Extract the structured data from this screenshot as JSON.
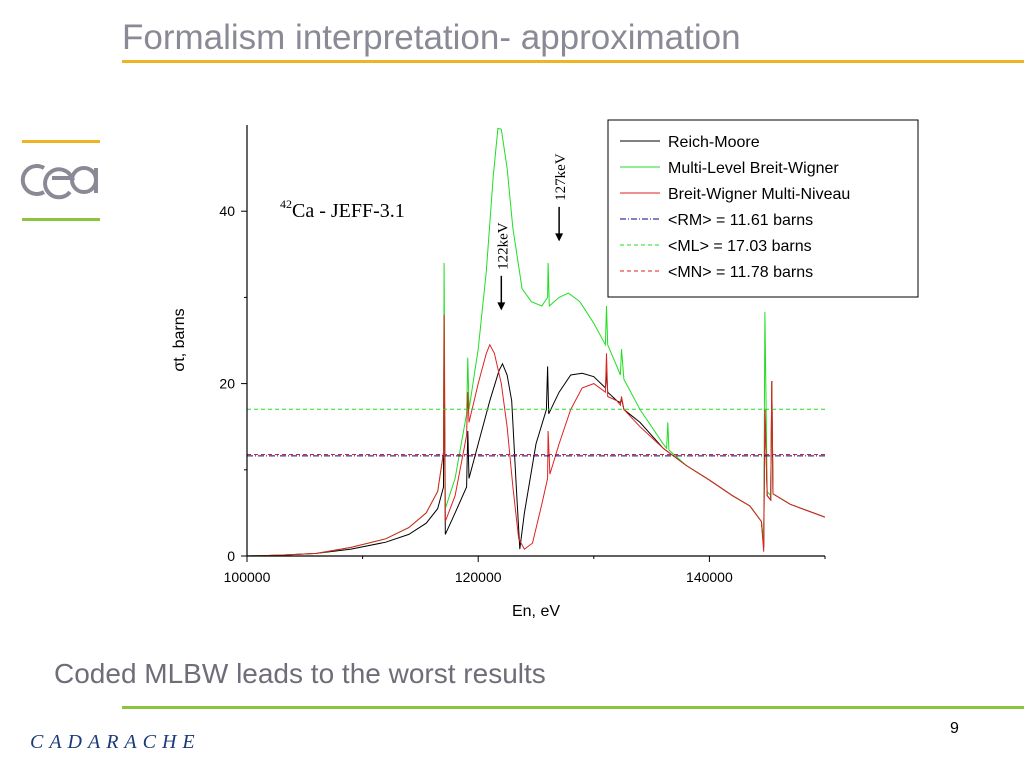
{
  "slide": {
    "title": "Formalism interpretation- approximation",
    "subtitle": "Coded MLBW leads to the worst results",
    "page_number": "9",
    "footer_logo_text": "CADARACHE",
    "accent_color": "#f0b323",
    "footer_color": "#8bc53f"
  },
  "chart_data": {
    "type": "line",
    "title": "",
    "annotation": {
      "superscript": "42",
      "text": "Ca - JEFF-3.1"
    },
    "xlabel": "En, eV",
    "ylabel": "σt, barns",
    "xlim": [
      100000,
      150000
    ],
    "ylim": [
      0,
      50
    ],
    "x_ticks": [
      100000,
      120000,
      140000
    ],
    "x_tick_labels": [
      "100000",
      "120000",
      "140000"
    ],
    "y_ticks": [
      0,
      20,
      40
    ],
    "y_tick_labels": [
      "0",
      "20",
      "40"
    ],
    "legend_position": "top-right",
    "arrows": [
      {
        "label": "122keV",
        "x": 122000,
        "y_tip": 28.5,
        "y_tail": 32.5
      },
      {
        "label": "127keV",
        "x": 127000,
        "y_tip": 36.5,
        "y_tail": 40.5
      }
    ],
    "series": [
      {
        "name": "Reich-Moore",
        "color": "#000000",
        "style": "solid",
        "points": [
          [
            100000,
            0
          ],
          [
            103000,
            0.1
          ],
          [
            106000,
            0.3
          ],
          [
            109000,
            0.8
          ],
          [
            112000,
            1.6
          ],
          [
            114000,
            2.5
          ],
          [
            115500,
            3.8
          ],
          [
            116500,
            5.5
          ],
          [
            117000,
            8.0
          ],
          [
            117050,
            26.0
          ],
          [
            117150,
            2.5
          ],
          [
            118000,
            5.0
          ],
          [
            119000,
            8.0
          ],
          [
            119100,
            14.5
          ],
          [
            119200,
            9.0
          ],
          [
            120000,
            13.0
          ],
          [
            121000,
            18.0
          ],
          [
            121800,
            21.5
          ],
          [
            122100,
            22.3
          ],
          [
            122500,
            21.0
          ],
          [
            122900,
            18.0
          ],
          [
            123300,
            8.0
          ],
          [
            123600,
            0.8
          ],
          [
            124000,
            5.0
          ],
          [
            125000,
            13.0
          ],
          [
            125900,
            17.0
          ],
          [
            126000,
            22.0
          ],
          [
            126100,
            16.5
          ],
          [
            127000,
            19.0
          ],
          [
            128000,
            21.0
          ],
          [
            129000,
            21.2
          ],
          [
            130000,
            20.8
          ],
          [
            131000,
            19.5
          ],
          [
            131100,
            21.5
          ],
          [
            131200,
            19.0
          ],
          [
            132000,
            18.0
          ],
          [
            132300,
            17.8
          ],
          [
            132400,
            18.3
          ],
          [
            132600,
            17.0
          ],
          [
            134000,
            15.5
          ],
          [
            136000,
            12.5
          ],
          [
            138000,
            10.5
          ],
          [
            140000,
            8.8
          ],
          [
            142000,
            7.0
          ],
          [
            143500,
            5.8
          ],
          [
            144500,
            4.0
          ],
          [
            144700,
            1.0
          ],
          [
            144800,
            17.0
          ],
          [
            145000,
            7.0
          ],
          [
            145300,
            6.5
          ],
          [
            145400,
            20.3
          ],
          [
            145500,
            7.2
          ],
          [
            147000,
            6.0
          ],
          [
            149000,
            5.0
          ],
          [
            150000,
            4.5
          ]
        ]
      },
      {
        "name": "Multi-Level Breit-Wigner",
        "color": "#22dd22",
        "style": "solid",
        "points": [
          [
            100000,
            0
          ],
          [
            103000,
            0.1
          ],
          [
            106000,
            0.3
          ],
          [
            109000,
            1.0
          ],
          [
            112000,
            2.0
          ],
          [
            114000,
            3.3
          ],
          [
            115500,
            5.0
          ],
          [
            116500,
            7.5
          ],
          [
            117000,
            12.0
          ],
          [
            117050,
            34.0
          ],
          [
            117150,
            5.5
          ],
          [
            118000,
            9.0
          ],
          [
            119000,
            16.5
          ],
          [
            119100,
            23.0
          ],
          [
            119200,
            17.0
          ],
          [
            120000,
            24.0
          ],
          [
            120700,
            33.0
          ],
          [
            121300,
            44.0
          ],
          [
            121700,
            49.6
          ],
          [
            122000,
            49.5
          ],
          [
            122500,
            45.0
          ],
          [
            123000,
            38.0
          ],
          [
            123800,
            31.0
          ],
          [
            124600,
            29.5
          ],
          [
            125500,
            29.0
          ],
          [
            126000,
            30.0
          ],
          [
            126050,
            34.0
          ],
          [
            126150,
            29.0
          ],
          [
            127000,
            30.0
          ],
          [
            127800,
            30.5
          ],
          [
            128800,
            29.5
          ],
          [
            130000,
            27.0
          ],
          [
            131000,
            24.5
          ],
          [
            131100,
            29.0
          ],
          [
            131200,
            24.5
          ],
          [
            132000,
            22.0
          ],
          [
            132300,
            21.0
          ],
          [
            132400,
            24.0
          ],
          [
            132600,
            20.5
          ],
          [
            134000,
            17.0
          ],
          [
            136000,
            13.0
          ],
          [
            136300,
            12.5
          ],
          [
            136400,
            15.5
          ],
          [
            136500,
            12.3
          ],
          [
            138000,
            10.5
          ],
          [
            140000,
            8.8
          ],
          [
            142000,
            7.0
          ],
          [
            143500,
            5.8
          ],
          [
            144500,
            4.0
          ],
          [
            144700,
            1.5
          ],
          [
            144800,
            28.3
          ],
          [
            145000,
            7.5
          ],
          [
            145300,
            7.0
          ],
          [
            145400,
            20.0
          ],
          [
            145500,
            7.2
          ],
          [
            147000,
            6.0
          ],
          [
            149000,
            5.0
          ],
          [
            150000,
            4.5
          ]
        ]
      },
      {
        "name": "Breit-Wigner Multi-Niveau",
        "color": "#dd2222",
        "style": "solid",
        "points": [
          [
            100000,
            0
          ],
          [
            103000,
            0.1
          ],
          [
            106000,
            0.3
          ],
          [
            109000,
            1.0
          ],
          [
            112000,
            2.0
          ],
          [
            114000,
            3.3
          ],
          [
            115500,
            5.0
          ],
          [
            116500,
            7.5
          ],
          [
            117000,
            12.0
          ],
          [
            117050,
            28.0
          ],
          [
            117150,
            4.0
          ],
          [
            118000,
            7.0
          ],
          [
            119000,
            14.0
          ],
          [
            119100,
            19.0
          ],
          [
            119200,
            15.5
          ],
          [
            120000,
            20.0
          ],
          [
            120700,
            23.5
          ],
          [
            121000,
            24.5
          ],
          [
            121400,
            23.5
          ],
          [
            122000,
            20.0
          ],
          [
            122500,
            15.0
          ],
          [
            123000,
            8.0
          ],
          [
            123500,
            2.0
          ],
          [
            124000,
            0.8
          ],
          [
            124700,
            1.5
          ],
          [
            125500,
            6.0
          ],
          [
            126000,
            9.0
          ],
          [
            126050,
            14.5
          ],
          [
            126200,
            9.5
          ],
          [
            127000,
            13.0
          ],
          [
            128000,
            17.0
          ],
          [
            129000,
            19.5
          ],
          [
            130000,
            20.0
          ],
          [
            131000,
            19.0
          ],
          [
            131100,
            23.5
          ],
          [
            131200,
            18.5
          ],
          [
            132000,
            18.0
          ],
          [
            132300,
            17.5
          ],
          [
            132400,
            18.5
          ],
          [
            132600,
            17.0
          ],
          [
            134000,
            15.0
          ],
          [
            136000,
            12.5
          ],
          [
            138000,
            10.5
          ],
          [
            140000,
            8.8
          ],
          [
            142000,
            7.0
          ],
          [
            143500,
            5.8
          ],
          [
            144500,
            4.0
          ],
          [
            144700,
            0.5
          ],
          [
            144800,
            17.0
          ],
          [
            145000,
            7.0
          ],
          [
            145300,
            6.5
          ],
          [
            145400,
            20.3
          ],
          [
            145500,
            7.2
          ],
          [
            147000,
            6.0
          ],
          [
            149000,
            5.0
          ],
          [
            150000,
            4.5
          ]
        ]
      },
      {
        "name": "<RM> = 11.61 barns",
        "color": "#000088",
        "style": "dashdot",
        "value": 11.61
      },
      {
        "name": "<ML> = 17.03 barns",
        "color": "#22dd22",
        "style": "dash",
        "value": 17.03
      },
      {
        "name": "<MN> = 11.78 barns",
        "color": "#dd2222",
        "style": "dash",
        "value": 11.78
      }
    ]
  }
}
